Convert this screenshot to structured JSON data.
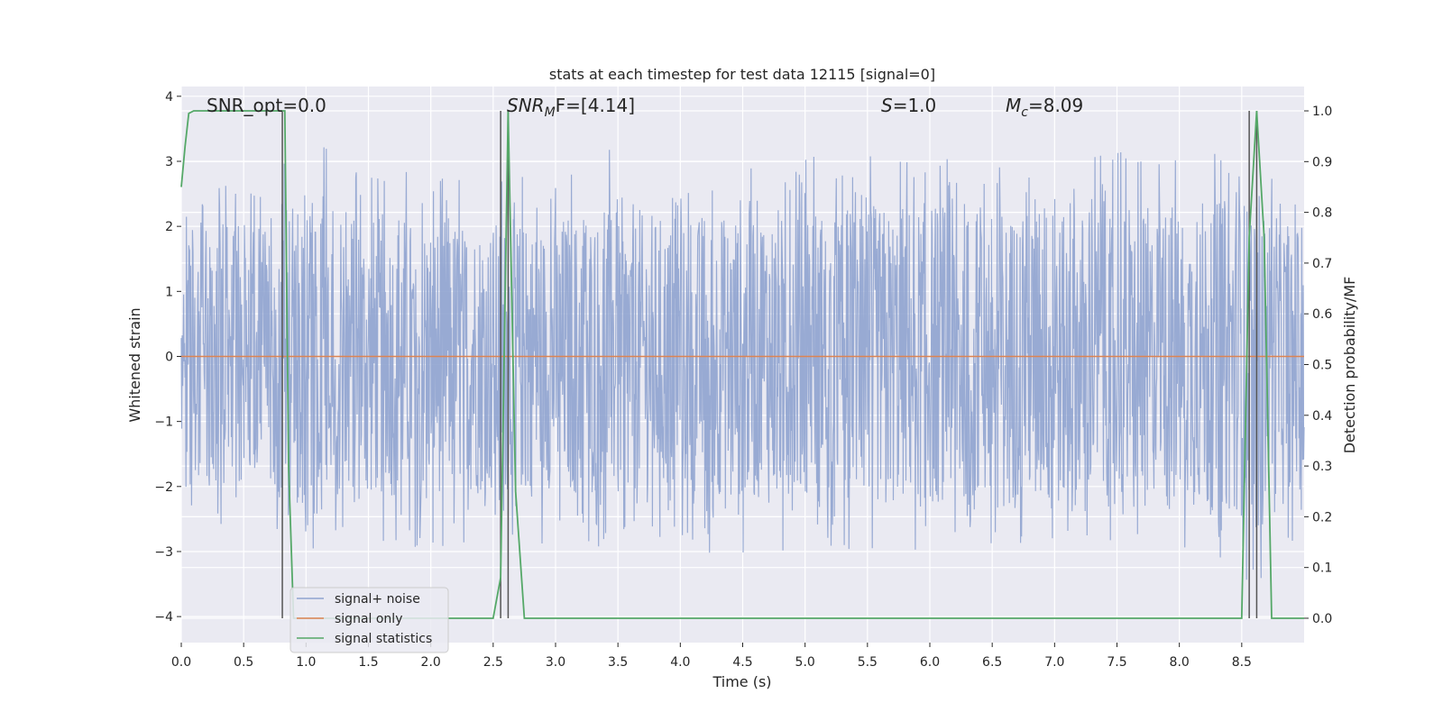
{
  "chart_data": {
    "type": "line",
    "title": "stats at each timestep for test data 12115 [signal=0]",
    "xlabel": "Time (s)",
    "ylabel": "Whitened strain",
    "y2label": "Detection probability/MF",
    "xlim": [
      0.0,
      9.0
    ],
    "ylim": [
      -4.4,
      4.15
    ],
    "y2lim": [
      -0.048,
      1.048
    ],
    "x_ticks": [
      0.0,
      0.5,
      1.0,
      1.5,
      2.0,
      2.5,
      3.0,
      3.5,
      4.0,
      4.5,
      5.0,
      5.5,
      6.0,
      6.5,
      7.0,
      7.5,
      8.0,
      8.5
    ],
    "y_ticks": [
      -4,
      -3,
      -2,
      -1,
      0,
      1,
      2,
      3,
      4
    ],
    "y_tick_labels": [
      "−4",
      "−3",
      "−2",
      "−1",
      "0",
      "1",
      "2",
      "3",
      "4"
    ],
    "y2_ticks": [
      0.0,
      0.1,
      0.2,
      0.3,
      0.4,
      0.5,
      0.6,
      0.7,
      0.8,
      0.9,
      1.0
    ],
    "y2_tick_labels": [
      "0.0",
      "0.1",
      "0.2",
      "0.3",
      "0.4",
      "0.5",
      "0.6",
      "0.7",
      "0.8",
      "0.9",
      "1.0"
    ],
    "grid": true,
    "legend_position": "lower-left",
    "annotations": {
      "snr_opt": "SNR_opt=0.0",
      "snr_mf_prefix": "SNR",
      "snr_mf_sub": "M",
      "snr_mf_suffix": "F=[4.14]",
      "s_var": "S",
      "s_value": "=1.0",
      "mc_var": "M",
      "mc_sub": "c",
      "mc_value": "=8.09"
    },
    "noise_envelope": {
      "x": [
        0.0,
        0.5,
        1.0,
        1.5,
        2.0,
        2.5,
        3.0,
        3.5,
        4.0,
        4.5,
        5.0,
        5.5,
        6.0,
        6.5,
        7.0,
        7.5,
        8.0,
        8.5,
        9.0
      ],
      "upper": [
        2.7,
        2.6,
        3.5,
        3.0,
        2.8,
        2.9,
        2.7,
        3.3,
        2.7,
        3.0,
        3.2,
        3.1,
        3.2,
        3.3,
        2.8,
        3.3,
        3.1,
        3.3,
        2.5
      ],
      "lower": [
        -2.5,
        -2.7,
        -3.0,
        -2.9,
        -3.0,
        -2.8,
        -3.0,
        -3.0,
        -2.8,
        -3.4,
        -2.8,
        -3.1,
        -3.0,
        -2.9,
        -3.2,
        -2.8,
        -2.9,
        -4.0,
        -2.6
      ]
    },
    "series": [
      {
        "name": "signal+ noise",
        "color": "#8fa3cf",
        "axis": "left"
      },
      {
        "name": "signal only",
        "color": "#dd8452",
        "axis": "left",
        "x": [
          0.0,
          9.0
        ],
        "y": [
          0.0,
          0.0
        ]
      },
      {
        "name": "signal statistics",
        "color": "#55a868",
        "axis": "right",
        "x": [
          0.0,
          0.03,
          0.06,
          0.1,
          0.2,
          0.5,
          0.8,
          0.83,
          0.86,
          0.9,
          1.0,
          1.5,
          2.0,
          2.5,
          2.56,
          2.62,
          2.68,
          2.75,
          3.0,
          4.0,
          5.0,
          6.0,
          7.0,
          8.0,
          8.5,
          8.56,
          8.62,
          8.68,
          8.74,
          8.8,
          9.0
        ],
        "y": [
          0.85,
          0.93,
          0.995,
          1.0,
          1.0,
          1.0,
          1.0,
          1.0,
          0.3,
          0.0,
          0.0,
          0.0,
          0.0,
          0.0,
          0.08,
          1.0,
          0.25,
          0.0,
          0.0,
          0.0,
          0.0,
          0.0,
          0.0,
          0.0,
          0.0,
          0.75,
          1.0,
          0.75,
          0.0,
          0.0,
          0.0
        ]
      }
    ],
    "vertical_markers": {
      "color": "#555555",
      "x": [
        0.81,
        2.56,
        2.62,
        8.56,
        8.62
      ],
      "y2_range": [
        0.0,
        1.0
      ]
    }
  }
}
